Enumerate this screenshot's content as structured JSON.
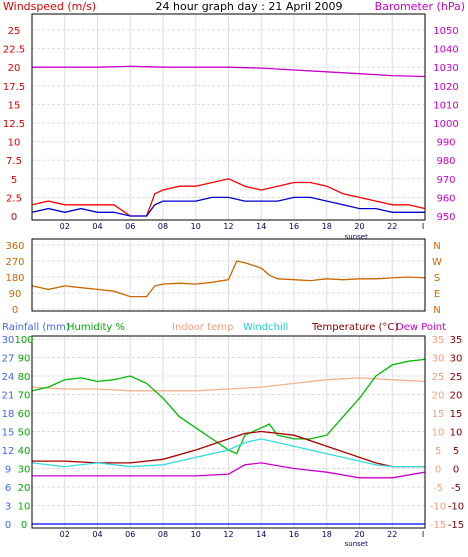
{
  "chart_data": [
    {
      "type": "line",
      "title": "24 hour graph day : 21 April 2009",
      "left_axis_label": "Windspeed (m/s)",
      "right_axis_label": "Barometer (hPa)",
      "left_ylim": [
        0,
        25
      ],
      "left_ticks": [
        "0",
        "2.5",
        "5",
        "7.5",
        "10",
        "12.5",
        "15",
        "17.5",
        "20",
        "22.5",
        "25"
      ],
      "right_ylim": [
        950,
        1050
      ],
      "right_ticks": [
        "950",
        "960",
        "970",
        "980",
        "990",
        "1000",
        "1010",
        "1020",
        "1030",
        "1040",
        "1050"
      ],
      "x_ticks": [
        "02",
        "04",
        "06",
        "08",
        "10",
        "12",
        "14",
        "16",
        "18",
        "20",
        "22"
      ],
      "x_end_marker": "I",
      "sunset_label": "sunset",
      "sunset_hour": 19.8,
      "grid": true,
      "series": [
        {
          "key": "barometer",
          "axis": "right",
          "color": "#cc00cc",
          "x": [
            0,
            2,
            4,
            6,
            8,
            10,
            12,
            14,
            16,
            18,
            20,
            22,
            24
          ],
          "y": [
            1030,
            1030,
            1030,
            1030.5,
            1030,
            1030,
            1030,
            1029.5,
            1028.5,
            1027.5,
            1026.5,
            1025.5,
            1025
          ]
        },
        {
          "key": "wind_gust",
          "axis": "left",
          "color": "#ff0000",
          "x": [
            0,
            1,
            2,
            3,
            4,
            5,
            6,
            7,
            7.5,
            8,
            9,
            10,
            11,
            12,
            13,
            14,
            15,
            16,
            17,
            18,
            19,
            20,
            21,
            22,
            23,
            24
          ],
          "y": [
            1.5,
            2,
            1.5,
            1.5,
            1.5,
            1.5,
            0,
            0,
            3,
            3.5,
            4,
            4,
            4.5,
            5,
            4,
            3.5,
            4,
            4.5,
            4.5,
            4,
            3,
            2.5,
            2,
            1.5,
            1.5,
            1
          ]
        },
        {
          "key": "wind_speed",
          "axis": "left",
          "color": "#0000cc",
          "x": [
            0,
            1,
            2,
            3,
            4,
            5,
            6,
            7,
            7.5,
            8,
            9,
            10,
            11,
            12,
            13,
            14,
            15,
            16,
            17,
            18,
            19,
            20,
            21,
            22,
            23,
            24
          ],
          "y": [
            0.5,
            1,
            0.5,
            1,
            0.5,
            0.5,
            0,
            0,
            1.5,
            2,
            2,
            2,
            2.5,
            2.5,
            2,
            2,
            2,
            2.5,
            2.5,
            2,
            1.5,
            1,
            1,
            0.5,
            0.5,
            0.5
          ]
        }
      ]
    },
    {
      "type": "line",
      "left_axis_label": "",
      "left_ylim": [
        0,
        360
      ],
      "left_ticks": [
        "0",
        "90",
        "180",
        "270",
        "360"
      ],
      "right_ticks": [
        "N",
        "E",
        "S",
        "W",
        "N"
      ],
      "grid": true,
      "series": [
        {
          "key": "wind_direction",
          "axis": "left",
          "color": "#cc6600",
          "x": [
            0,
            1,
            2,
            3,
            4,
            5,
            6,
            7,
            7.5,
            8,
            9,
            10,
            11,
            12,
            12.5,
            13,
            14,
            14.5,
            15,
            16,
            17,
            18,
            19,
            20,
            21,
            22,
            23,
            24
          ],
          "y": [
            130,
            110,
            130,
            120,
            110,
            100,
            70,
            70,
            130,
            140,
            145,
            140,
            150,
            165,
            270,
            260,
            230,
            190,
            170,
            165,
            160,
            170,
            165,
            170,
            170,
            175,
            180,
            175
          ]
        }
      ]
    },
    {
      "type": "line",
      "top_labels": [
        "Rainfall (mm)",
        "Humidity %",
        "Indoor temp",
        "Windchill",
        "Temperature (°C)",
        "Dew Point"
      ],
      "rainfall_ticks": [
        "0",
        "3",
        "6",
        "9",
        "12",
        "15",
        "18",
        "21",
        "24",
        "27",
        "30"
      ],
      "humidity_ticks": [
        "0",
        "10",
        "20",
        "30",
        "40",
        "50",
        "60",
        "70",
        "80",
        "90",
        "100"
      ],
      "temperature_ticks": [
        "-15",
        "-10",
        "-5",
        "0",
        "5",
        "10",
        "15",
        "20",
        "25",
        "30",
        "35"
      ],
      "temperature_ylim": [
        -15,
        35
      ],
      "x_ticks": [
        "02",
        "04",
        "06",
        "08",
        "10",
        "12",
        "14",
        "16",
        "18",
        "20",
        "22"
      ],
      "x_end_marker": "I",
      "sunset_label": "sunset",
      "grid": true,
      "series": [
        {
          "key": "indoor_temp",
          "axis": "temperature",
          "color": "#f4b090",
          "x": [
            0,
            2,
            4,
            6,
            8,
            10,
            12,
            14,
            16,
            18,
            20,
            22,
            24
          ],
          "y": [
            22,
            21.5,
            21.5,
            21,
            21,
            21,
            21.5,
            22,
            23,
            24,
            24.5,
            24,
            23.5
          ]
        },
        {
          "key": "humidity",
          "axis": "humidity",
          "color": "#00bb00",
          "x": [
            0,
            1,
            2,
            3,
            4,
            5,
            6,
            7,
            8,
            9,
            10,
            11,
            12,
            12.5,
            13,
            14,
            14.5,
            15,
            16,
            17,
            18,
            19,
            20,
            21,
            22,
            23,
            24
          ],
          "y": [
            72,
            74,
            78,
            79,
            77,
            78,
            80,
            76,
            68,
            58,
            52,
            46,
            40,
            38,
            48,
            52,
            54,
            48,
            46,
            46,
            48,
            58,
            68,
            80,
            86,
            88,
            89
          ]
        },
        {
          "key": "temperature",
          "axis": "temperature",
          "color": "#aa0000",
          "x": [
            0,
            2,
            4,
            6,
            8,
            10,
            12,
            13,
            14,
            16,
            18,
            20,
            21,
            22,
            23,
            24
          ],
          "y": [
            2,
            2,
            1.5,
            1.5,
            2.5,
            5,
            8,
            9.5,
            10,
            9,
            6,
            3,
            1.5,
            0.5,
            0.5,
            0.5
          ]
        },
        {
          "key": "windchill",
          "axis": "temperature",
          "color": "#33dddd",
          "x": [
            0,
            2,
            4,
            6,
            8,
            10,
            12,
            13,
            14,
            16,
            18,
            20,
            21,
            22,
            23,
            24
          ],
          "y": [
            1.5,
            0.5,
            1.5,
            0.5,
            1,
            3,
            5,
            7,
            8,
            6,
            4,
            2,
            1,
            0.5,
            0.5,
            0.5
          ]
        },
        {
          "key": "dew_point",
          "axis": "temperature",
          "color": "#cc00cc",
          "x": [
            0,
            2,
            4,
            6,
            8,
            10,
            12,
            13,
            14,
            16,
            18,
            20,
            22,
            24
          ],
          "y": [
            -2,
            -2,
            -2,
            -2,
            -2,
            -2,
            -1.5,
            1,
            1.5,
            0,
            -1,
            -2.5,
            -2.5,
            -1
          ]
        },
        {
          "key": "rainfall",
          "axis": "rainfall",
          "color": "#0000ff",
          "x": [
            0,
            24
          ],
          "y": [
            0,
            0
          ]
        }
      ]
    }
  ]
}
